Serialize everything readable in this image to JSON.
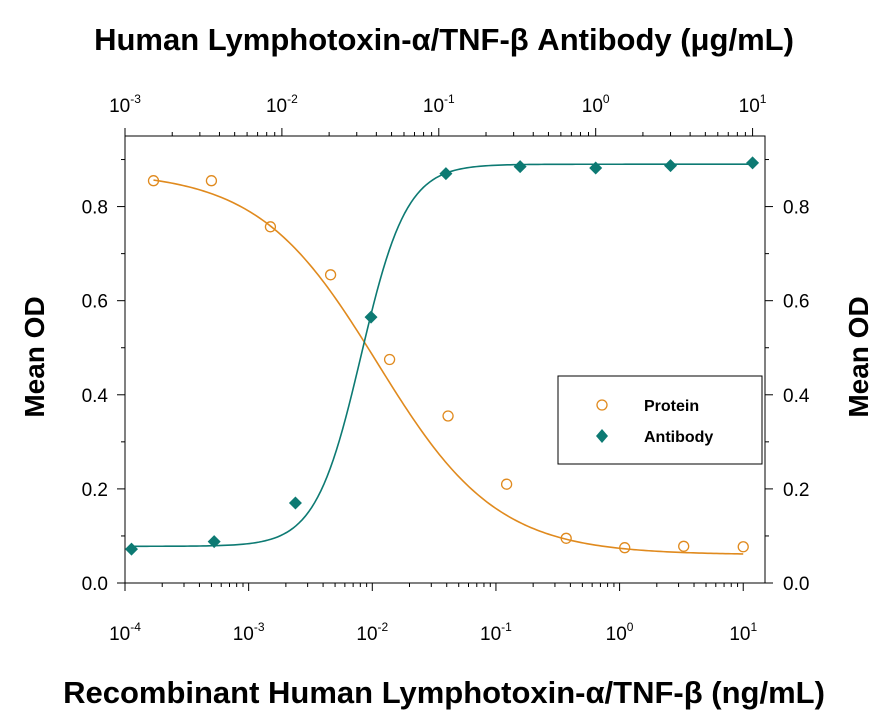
{
  "chart_data": {
    "type": "scatter",
    "top_title": "Human Lymphotoxin-α/TNF-β  Antibody (μg/mL)",
    "bottom_title": "Recombinant Human Lymphotoxin-α/TNF-β (ng/mL)",
    "ylabel_left": "Mean OD",
    "ylabel_right": "Mean OD",
    "x_bottom": {
      "scale": "log",
      "range": [
        0.0001,
        15
      ],
      "tick_bases": [
        "10",
        "10",
        "10",
        "10",
        "10",
        "10"
      ],
      "tick_exps": [
        "-4",
        "-3",
        "-2",
        "-1",
        "0",
        "1"
      ],
      "tick_values": [
        0.0001,
        0.001,
        0.01,
        0.1,
        1,
        10
      ]
    },
    "x_top": {
      "scale": "log",
      "range": [
        0.001,
        12
      ],
      "tick_bases": [
        "10",
        "10",
        "10",
        "10",
        "10"
      ],
      "tick_exps": [
        "-3",
        "-2",
        "-1",
        "0",
        "1"
      ],
      "tick_values": [
        0.001,
        0.01,
        0.1,
        1,
        10
      ]
    },
    "y": {
      "range": [
        0,
        0.95
      ],
      "tick_labels": [
        "0.0",
        "0.2",
        "0.4",
        "0.6",
        "0.8"
      ],
      "tick_values": [
        0,
        0.2,
        0.4,
        0.6,
        0.8
      ]
    },
    "legend_position": "center-right",
    "series": [
      {
        "name": "Protein",
        "axis": "bottom",
        "marker": "open-circle",
        "color": "#e08a1e",
        "x": [
          0.00017,
          0.0005,
          0.0015,
          0.0046,
          0.0138,
          0.041,
          0.122,
          0.37,
          1.1,
          3.3,
          10
        ],
        "y": [
          0.855,
          0.855,
          0.757,
          0.655,
          0.475,
          0.355,
          0.21,
          0.095,
          0.075,
          0.078,
          0.077
        ],
        "fit": {
          "bottom": 0.06,
          "top": 0.875,
          "ec50": 0.011,
          "hill": 0.9
        }
      },
      {
        "name": "Antibody",
        "axis": "top",
        "marker": "filled-diamond",
        "color": "#0d7a73",
        "x": [
          0.0011,
          0.0037,
          0.0122,
          0.037,
          0.111,
          0.33,
          1.0,
          3.0,
          10
        ],
        "y": [
          0.072,
          0.088,
          0.17,
          0.565,
          0.87,
          0.885,
          0.882,
          0.887,
          0.893
        ],
        "fit": {
          "bottom": 0.078,
          "top": 0.89,
          "ec50": 0.032,
          "hill": 3.0
        }
      }
    ]
  }
}
